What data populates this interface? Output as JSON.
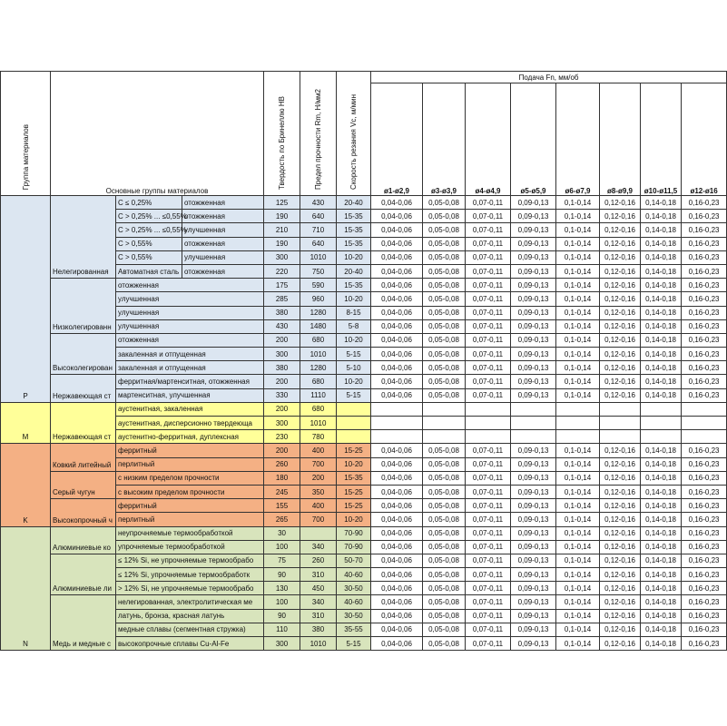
{
  "header": {
    "group": "Группа материалов",
    "main_groups": "Основные группы материалов",
    "hb": "Твердость по Бринеллю HB",
    "rm": "Предел прочности Rm, Н/мм2",
    "vc": "Скорость резания Vc, м/мин",
    "feed_title": "Подача Fn, мм/об",
    "feed_cols": [
      "ø1-ø2,9",
      "ø3-ø3,9",
      "ø4-ø4,9",
      "ø5-ø5,9",
      "ø6-ø7,9",
      "ø8-ø9,9",
      "ø10-ø11,5",
      "ø12-ø16"
    ]
  },
  "feed_row": [
    "0,04-0,06",
    "0,05-0,08",
    "0,07-0,11",
    "0,09-0,13",
    "0,1-0,14",
    "0,12-0,16",
    "0,14-0,18",
    "0,16-0,23"
  ],
  "groups": [
    {
      "code": "P",
      "color": "#dce6f1",
      "subgroups": [
        {
          "name": "Нелегированная",
          "rows": [
            {
              "c": "C ≤ 0,25%",
              "treat": "отожженная",
              "hb": "125",
              "rm": "430",
              "vc": "20-40",
              "feed": true
            },
            {
              "c": "C > 0,25% ... ≤0,55%",
              "treat": "отожженная",
              "hb": "190",
              "rm": "640",
              "vc": "15-35",
              "feed": true
            },
            {
              "c": "C > 0,25% ... ≤0,55%",
              "treat": "улучшенная",
              "hb": "210",
              "rm": "710",
              "vc": "15-35",
              "feed": true
            },
            {
              "c": "C > 0,55%",
              "treat": "отожженная",
              "hb": "190",
              "rm": "640",
              "vc": "15-35",
              "feed": true
            },
            {
              "c": "C > 0,55%",
              "treat": "улучшенная",
              "hb": "300",
              "rm": "1010",
              "vc": "10-20",
              "feed": true
            },
            {
              "c": "Автоматная сталь",
              "treat": "отожженная",
              "hb": "220",
              "rm": "750",
              "vc": "20-40",
              "feed": true
            }
          ]
        },
        {
          "name": "Низколегированн",
          "rows": [
            {
              "desc": "отожженная",
              "hb": "175",
              "rm": "590",
              "vc": "15-35",
              "feed": true
            },
            {
              "desc": "улучшенная",
              "hb": "285",
              "rm": "960",
              "vc": "10-20",
              "feed": true
            },
            {
              "desc": "улучшенная",
              "hb": "380",
              "rm": "1280",
              "vc": "8-15",
              "feed": true
            },
            {
              "desc": "улучшенная",
              "hb": "430",
              "rm": "1480",
              "vc": "5-8",
              "feed": true
            }
          ]
        },
        {
          "name": "Высоколегирован",
          "rows": [
            {
              "desc": "отожженная",
              "hb": "200",
              "rm": "680",
              "vc": "10-20",
              "feed": true
            },
            {
              "desc": "закаленная и отпущенная",
              "hb": "300",
              "rm": "1010",
              "vc": "5-15",
              "feed": true
            },
            {
              "desc": "закаленная и отпущенная",
              "hb": "380",
              "rm": "1280",
              "vc": "5-10",
              "feed": true
            }
          ]
        },
        {
          "name": "Нержавеющая ст",
          "rows": [
            {
              "desc": "ферритная/мартенситная, отожженная",
              "hb": "200",
              "rm": "680",
              "vc": "10-20",
              "feed": true
            },
            {
              "desc": "мартенситная, улучшенная",
              "hb": "330",
              "rm": "1110",
              "vc": "5-15",
              "feed": true
            }
          ]
        }
      ]
    },
    {
      "code": "M",
      "color": "#ffff99",
      "subgroups": [
        {
          "name": "Нержавеющая ст",
          "rows": [
            {
              "desc": "аустенитная, закаленная",
              "hb": "200",
              "rm": "680",
              "vc": "",
              "feed": false
            },
            {
              "desc": "аустенитная, дисперсионно твердеюща",
              "hb": "300",
              "rm": "1010",
              "vc": "",
              "feed": false
            },
            {
              "desc": "аустенитно-ферритная, дуплексная",
              "hb": "230",
              "rm": "780",
              "vc": "",
              "feed": false
            }
          ]
        }
      ]
    },
    {
      "code": "K",
      "color": "#f4b084",
      "subgroups": [
        {
          "name": "Ковкий литейный",
          "rows": [
            {
              "desc": "ферритный",
              "hb": "200",
              "rm": "400",
              "vc": "15-25",
              "feed": true
            },
            {
              "desc": "перлитный",
              "hb": "260",
              "rm": "700",
              "vc": "10-20",
              "feed": true
            }
          ]
        },
        {
          "name": "Серый чугун",
          "rows": [
            {
              "desc": "с низким пределом прочности",
              "hb": "180",
              "rm": "200",
              "vc": "15-35",
              "feed": true
            },
            {
              "desc": "с высоким пределом прочности",
              "hb": "245",
              "rm": "350",
              "vc": "15-25",
              "feed": true
            }
          ]
        },
        {
          "name": "Высокопрочный ч",
          "rows": [
            {
              "desc": "ферритный",
              "hb": "155",
              "rm": "400",
              "vc": "15-25",
              "feed": true
            },
            {
              "desc": "перлитный",
              "hb": "265",
              "rm": "700",
              "vc": "10-20",
              "feed": true
            }
          ]
        }
      ]
    },
    {
      "code": "N",
      "color": "#d8e4bc",
      "subgroups": [
        {
          "name": "Алюминиевые ко",
          "rows": [
            {
              "desc": "неупрочняемые термообработкой",
              "hb": "30",
              "rm": "",
              "vc": "70-90",
              "feed": true
            },
            {
              "desc": "упрочняемые термообработкой",
              "hb": "100",
              "rm": "340",
              "vc": "70-90",
              "feed": true
            }
          ]
        },
        {
          "name": "Алюминиевые ли",
          "rows": [
            {
              "desc": "≤ 12% Si, не упрочняемые термообрабо",
              "hb": "75",
              "rm": "260",
              "vc": "50-70",
              "feed": true
            },
            {
              "desc": "≤ 12% Si, упрочняемые термообработк",
              "hb": "90",
              "rm": "310",
              "vc": "40-60",
              "feed": true
            },
            {
              "desc": "> 12% Si, не упрочняемые термообрабо",
              "hb": "130",
              "rm": "450",
              "vc": "30-50",
              "feed": true
            }
          ]
        },
        {
          "name": "Медь и медные с",
          "rows": [
            {
              "desc": "нелегированная, электролитическая ме",
              "hb": "100",
              "rm": "340",
              "vc": "40-60",
              "feed": true
            },
            {
              "desc": "латунь, бронза, красная латунь",
              "hb": "90",
              "rm": "310",
              "vc": "30-50",
              "feed": true
            },
            {
              "desc": "медные сплавы (сегментная стружка)",
              "hb": "110",
              "rm": "380",
              "vc": "35-55",
              "feed": true
            },
            {
              "desc": "высокопрочные сплавы Cu-Al-Fe",
              "hb": "300",
              "rm": "1010",
              "vc": "5-15",
              "feed": true
            }
          ]
        }
      ]
    }
  ]
}
